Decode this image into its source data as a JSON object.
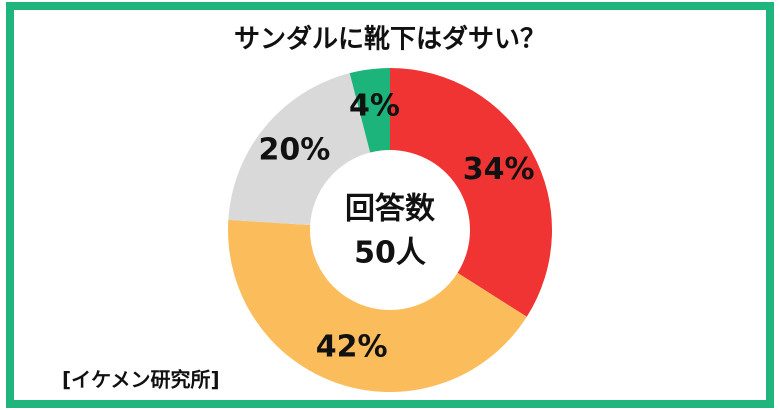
{
  "chart_data": {
    "type": "donut",
    "title": "サンダルに靴下はダサい？",
    "values": [
      34,
      42,
      20,
      4
    ],
    "value_labels": [
      "34%",
      "42%",
      "20%",
      "4%"
    ],
    "colors": [
      "#f03434",
      "#fbbd5c",
      "#d9d9d9",
      "#1db47b"
    ],
    "center_text": [
      "回答数",
      "50人"
    ],
    "source": "[イケメン研究所]"
  }
}
